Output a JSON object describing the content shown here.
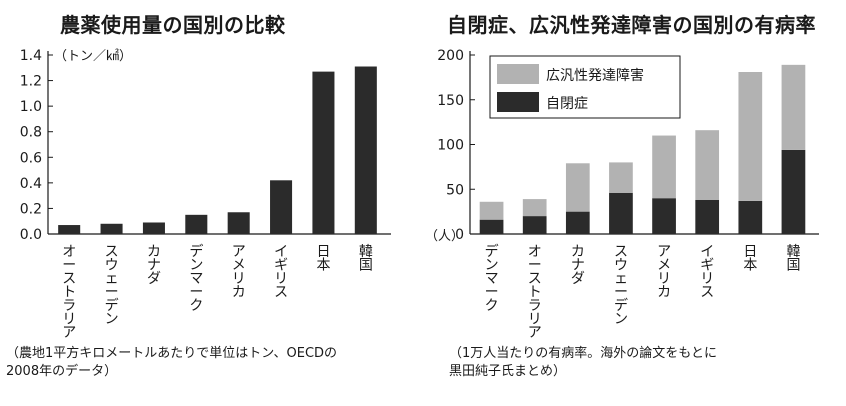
{
  "chart_data": [
    {
      "type": "bar",
      "title": "農薬使用量の国別の比較",
      "unit_label": "（トン／㎢）",
      "categories": [
        "オーストラリア",
        "スウェーデン",
        "カナダ",
        "デンマーク",
        "アメリカ",
        "イギリス",
        "日本",
        "韓国"
      ],
      "values": [
        0.07,
        0.08,
        0.09,
        0.15,
        0.17,
        0.42,
        1.27,
        1.31
      ],
      "ylim": [
        0,
        1.4
      ],
      "yticks": [
        0,
        0.2,
        0.4,
        0.6,
        0.8,
        1.0,
        1.2,
        1.4
      ],
      "ytick_labels": [
        "0.0",
        "0.2",
        "0.4",
        "0.6",
        "0.8",
        "1.0",
        "1.2",
        "1.4"
      ],
      "grid": false,
      "colors": {
        "bar": "#2b2b2b"
      },
      "note_lines": [
        "（農地1平方キロメートルあたりで単位はトン、OECDの",
        "2008年のデータ）"
      ]
    },
    {
      "type": "bar",
      "stacked": true,
      "title": "自閉症、広汎性発達障害の国別の有病率",
      "unit_label": "（人）",
      "categories": [
        "デンマーク",
        "オーストラリア",
        "カナダ",
        "スウェーデン",
        "アメリカ",
        "イギリス",
        "日本",
        "韓国"
      ],
      "series": [
        {
          "name": "自閉症",
          "values": [
            16,
            20,
            25,
            46,
            40,
            38,
            37,
            94
          ],
          "color": "#2b2b2b"
        },
        {
          "name": "広汎性発達障害",
          "values": [
            20,
            19,
            54,
            34,
            70,
            78,
            144,
            95
          ],
          "color": "#b2b2b2"
        }
      ],
      "ylim": [
        0,
        200
      ],
      "yticks": [
        0,
        50,
        100,
        150,
        200
      ],
      "ytick_labels": [
        "0",
        "50",
        "100",
        "150",
        "200"
      ],
      "legend_position": "top-left",
      "grid": false,
      "note_lines": [
        "（1万人当たりの有病率。海外の論文をもとに",
        "黒田純子氏まとめ）"
      ]
    }
  ]
}
